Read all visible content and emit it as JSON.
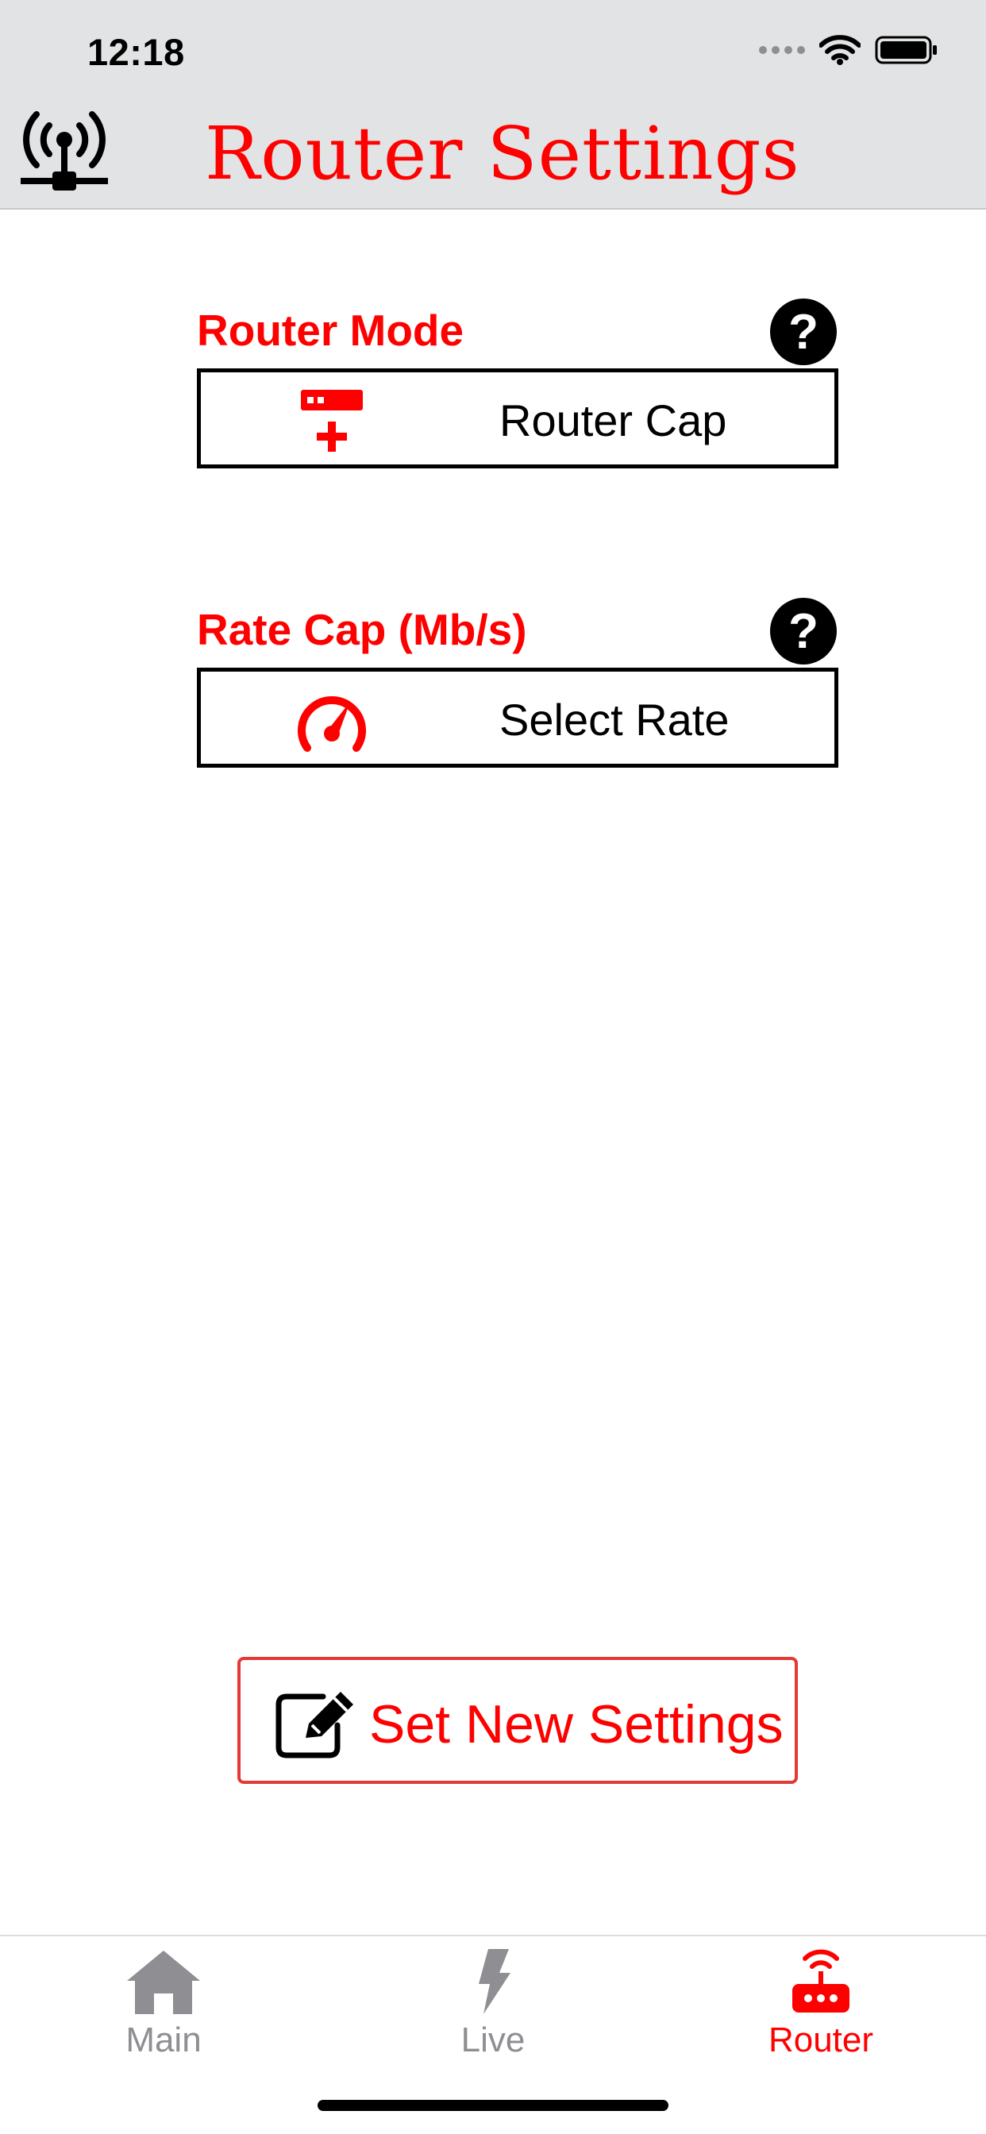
{
  "status_bar": {
    "time": "12:18",
    "wifi_icon": "wifi-icon",
    "battery_icon": "battery-icon"
  },
  "header": {
    "title": "Router Settings",
    "logo_icon": "router-antenna-icon"
  },
  "router_mode": {
    "label": "Router Mode",
    "help_icon": "help-icon",
    "selected_value": "Router Cap",
    "icon": "router-plus-icon"
  },
  "rate_cap": {
    "label": "Rate Cap (Mb/s)",
    "help_icon": "help-icon",
    "selected_value": "Select Rate",
    "icon": "speedometer-icon"
  },
  "action": {
    "label": "Set New Settings",
    "icon": "edit-icon"
  },
  "tabs": [
    {
      "label": "Main",
      "icon": "home-icon",
      "active": false
    },
    {
      "label": "Live",
      "icon": "lightning-icon",
      "active": false
    },
    {
      "label": "Router",
      "icon": "router-icon",
      "active": true
    }
  ],
  "colors": {
    "accent": "#ff0000",
    "inactive_tab": "#8e8e93",
    "header_bg": "#e2e3e5"
  }
}
